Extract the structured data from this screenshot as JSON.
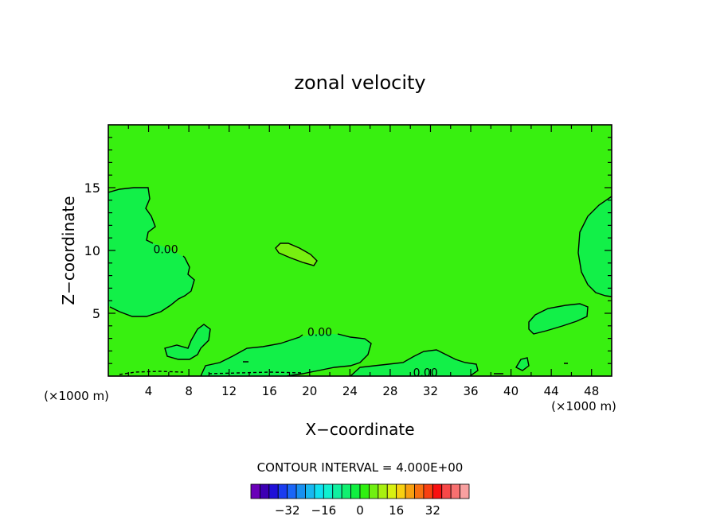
{
  "chart_data": {
    "type": "contour",
    "title": "zonal velocity",
    "xlabel": "X−coordinate",
    "ylabel": "Z−coordinate",
    "x_unit": "(×1000 m)",
    "y_unit": "(×1000 m)",
    "xlim": [
      0,
      50
    ],
    "ylim": [
      0,
      20
    ],
    "x_ticks": [
      4,
      8,
      12,
      16,
      20,
      24,
      28,
      32,
      36,
      40,
      44,
      48
    ],
    "y_ticks": [
      5,
      10,
      15
    ],
    "contour_labels": [
      {
        "text": "0.00",
        "x": 5.7,
        "y": 10.1
      },
      {
        "text": "0.00",
        "x": 21,
        "y": 3.5
      },
      {
        "text": "0.00",
        "x": 31.5,
        "y": 0.3
      }
    ],
    "contour_interval_label": "CONTOUR INTERVAL = 4.000E+00",
    "colorbar": {
      "colors": [
        "#6a00b8",
        "#3d00b4",
        "#1f10d8",
        "#1a3cf0",
        "#1a66f8",
        "#1890f0",
        "#18b8f0",
        "#10e0f0",
        "#10f0d0",
        "#10f0a0",
        "#10f070",
        "#10f040",
        "#30f010",
        "#70f010",
        "#a8f010",
        "#d8f010",
        "#f8d010",
        "#f8a010",
        "#f87010",
        "#f84010",
        "#f81010",
        "#f84848",
        "#f87070",
        "#f8a0a0"
      ],
      "tick_labels": [
        "−32",
        "−16",
        "0",
        "16",
        "32"
      ],
      "tick_values": [
        -32,
        -16,
        0,
        16,
        32
      ],
      "min": -48,
      "max": 48
    },
    "background_color": "#38f010",
    "region_color": "#12f048",
    "light_region_color": "#78f010"
  }
}
